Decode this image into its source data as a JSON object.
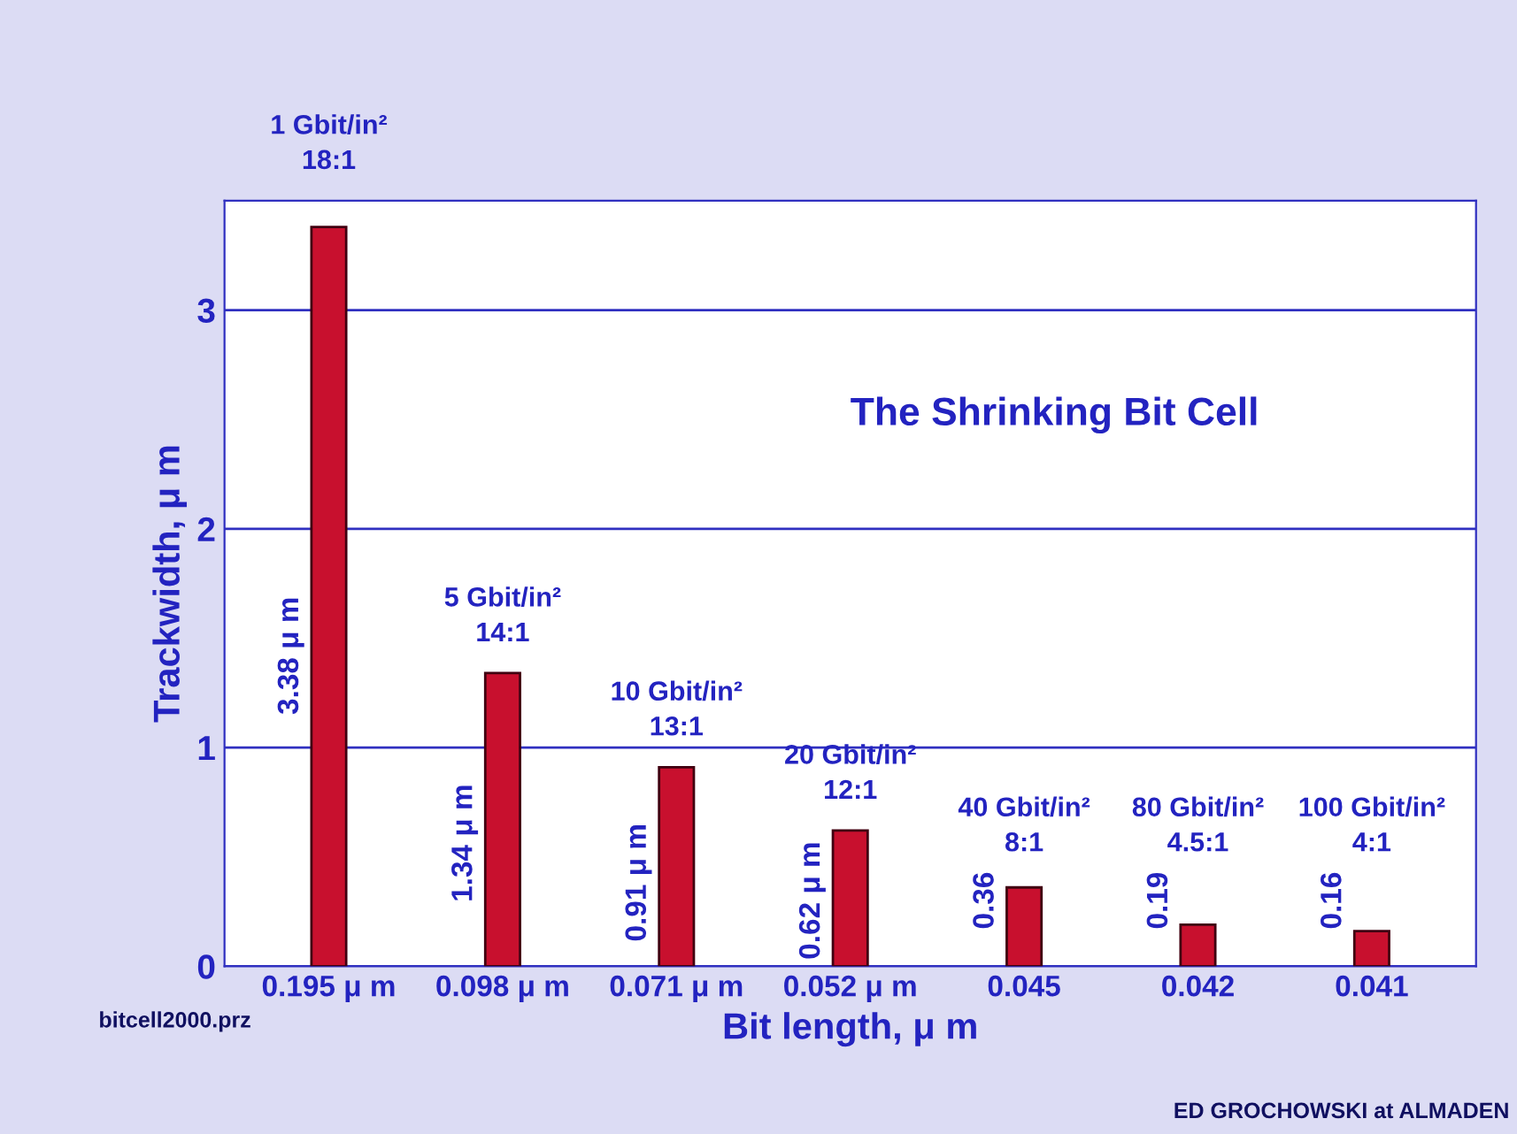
{
  "chart_data": {
    "type": "bar",
    "title": "The Shrinking Bit Cell",
    "xlabel": "Bit length, μ m",
    "ylabel": "Trackwidth, μ m",
    "categories": [
      "0.195 μ m",
      "0.098 μ m",
      "0.071 μ m",
      "0.052 μ m",
      "0.045",
      "0.042",
      "0.041"
    ],
    "values": [
      3.38,
      1.34,
      0.91,
      0.62,
      0.36,
      0.19,
      0.16
    ],
    "value_labels": [
      "3.38 μ m",
      "1.34 μ m",
      "0.91 μ m",
      "0.62 μ m",
      "0.36",
      "0.19",
      "0.16"
    ],
    "color": "#c8102e",
    "ylim": [
      0,
      3.5
    ],
    "yticks": [
      0,
      1,
      2,
      3
    ],
    "grid": "y",
    "annotations": [
      "1 Gbit/in²\n18:1",
      "5 Gbit/in²\n14:1",
      "10 Gbit/in²\n13:1",
      "20 Gbit/in²\n12:1",
      "40 Gbit/in²\n8:1",
      "80 Gbit/in²\n4.5:1",
      "100 Gbit/in²\n4:1",
      "bitcell2000.prz",
      "ED GROCHOWSKI at ALMADEN"
    ]
  }
}
